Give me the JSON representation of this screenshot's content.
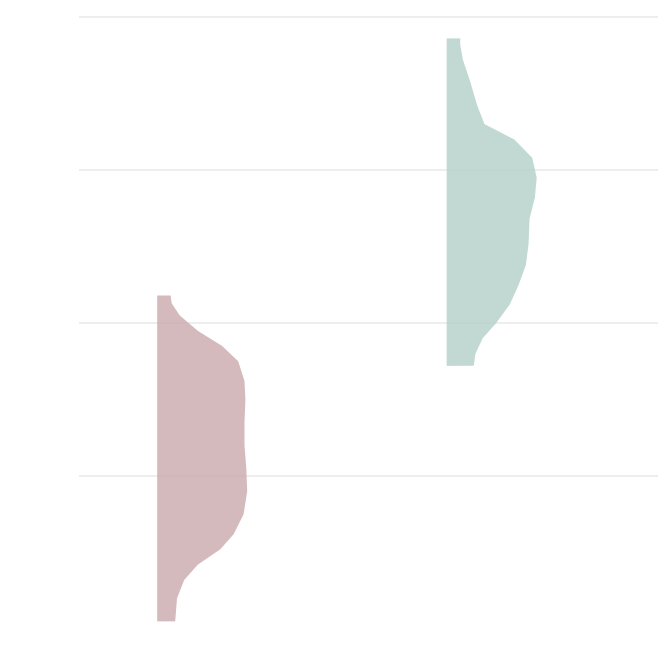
{
  "chart_data": {
    "type": "half-violin",
    "title": "",
    "xlabel": "",
    "ylabel": "",
    "ylim": [
      0,
      4
    ],
    "gridlines": [
      1,
      2,
      3,
      4
    ],
    "grid": true,
    "legend": "none",
    "series": [
      {
        "color": "#cba9ad",
        "min": 0.05,
        "max": 2.18,
        "density": [
          [
            0.05,
            0.2
          ],
          [
            0.2,
            0.22
          ],
          [
            0.32,
            0.3
          ],
          [
            0.42,
            0.45
          ],
          [
            0.52,
            0.7
          ],
          [
            0.62,
            0.85
          ],
          [
            0.75,
            0.96
          ],
          [
            0.9,
            1.0
          ],
          [
            1.05,
            0.99
          ],
          [
            1.2,
            0.97
          ],
          [
            1.35,
            0.97
          ],
          [
            1.5,
            0.98
          ],
          [
            1.62,
            0.97
          ],
          [
            1.75,
            0.9
          ],
          [
            1.85,
            0.72
          ],
          [
            1.95,
            0.45
          ],
          [
            2.05,
            0.25
          ],
          [
            2.13,
            0.16
          ],
          [
            2.18,
            0.15
          ]
        ]
      },
      {
        "color": "#b3d0c8",
        "min": 1.72,
        "max": 3.86,
        "density": [
          [
            1.72,
            0.3
          ],
          [
            1.8,
            0.32
          ],
          [
            1.9,
            0.4
          ],
          [
            2.0,
            0.55
          ],
          [
            2.12,
            0.7
          ],
          [
            2.25,
            0.8
          ],
          [
            2.38,
            0.88
          ],
          [
            2.52,
            0.91
          ],
          [
            2.68,
            0.92
          ],
          [
            2.82,
            0.98
          ],
          [
            2.95,
            1.0
          ],
          [
            3.08,
            0.95
          ],
          [
            3.2,
            0.75
          ],
          [
            3.3,
            0.42
          ],
          [
            3.42,
            0.34
          ],
          [
            3.58,
            0.26
          ],
          [
            3.72,
            0.18
          ],
          [
            3.82,
            0.15
          ],
          [
            3.86,
            0.15
          ]
        ]
      }
    ]
  }
}
